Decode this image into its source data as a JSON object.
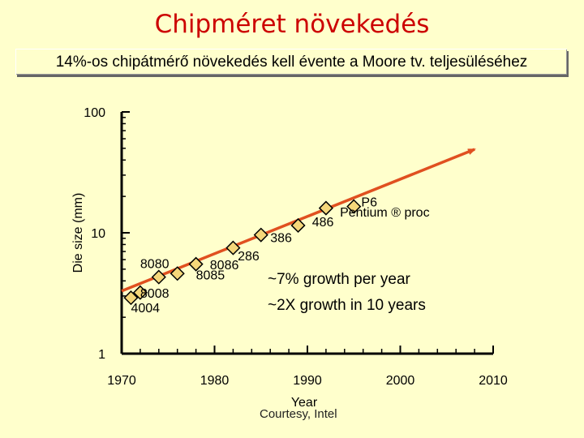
{
  "title": "Chipméret növekedés",
  "subtitle": "14%-os chipátmérő növekedés kell évente a Moore tv. teljesüléséhez",
  "credit": "Courtesy, Intel",
  "colors": {
    "background": "#ffffcc",
    "title": "#cc0000",
    "trend_line": "#e05020",
    "marker_fill": "#f5d77a",
    "marker_stroke": "#000000"
  },
  "chart_data": {
    "type": "scatter",
    "xlabel": "Year",
    "ylabel": "Die size (mm)",
    "xlim": [
      1970,
      2010
    ],
    "ylim": [
      1,
      100
    ],
    "yscale": "log",
    "x_ticks": [
      1970,
      1980,
      1990,
      2000,
      2010
    ],
    "y_ticks": [
      1,
      10,
      100
    ],
    "grid": false,
    "points": [
      {
        "x": 1971,
        "y": 2.9
      },
      {
        "x": 1972,
        "y": 3.2
      },
      {
        "x": 1974,
        "y": 4.3
      },
      {
        "x": 1976,
        "y": 4.6
      },
      {
        "x": 1978,
        "y": 5.5
      },
      {
        "x": 1982,
        "y": 7.5
      },
      {
        "x": 1985,
        "y": 9.6
      },
      {
        "x": 1989,
        "y": 11.5
      },
      {
        "x": 1992,
        "y": 16
      },
      {
        "x": 1995,
        "y": 16.5
      }
    ],
    "point_labels": [
      {
        "text": "4004",
        "x": 1971,
        "y": 2.2
      },
      {
        "text": "8008",
        "x": 1972,
        "y": 2.9
      },
      {
        "text": "8080",
        "x": 1972,
        "y": 5.1
      },
      {
        "text": "8086",
        "x": 1979.5,
        "y": 5.0
      },
      {
        "text": "8085",
        "x": 1978,
        "y": 4.1
      },
      {
        "text": "286",
        "x": 1982.5,
        "y": 5.9
      },
      {
        "text": "386",
        "x": 1986,
        "y": 8.4
      },
      {
        "text": "486",
        "x": 1990.5,
        "y": 11.3
      },
      {
        "text": "P6",
        "x": 1995.8,
        "y": 16.5
      },
      {
        "text": "Pentium ® proc",
        "x": 1993.5,
        "y": 13.6
      }
    ],
    "annotations": [
      "~7% growth per year",
      "~2X growth in 10 years"
    ],
    "trend_line": {
      "x": [
        1970,
        2008
      ],
      "y": [
        3.3,
        49
      ]
    }
  }
}
